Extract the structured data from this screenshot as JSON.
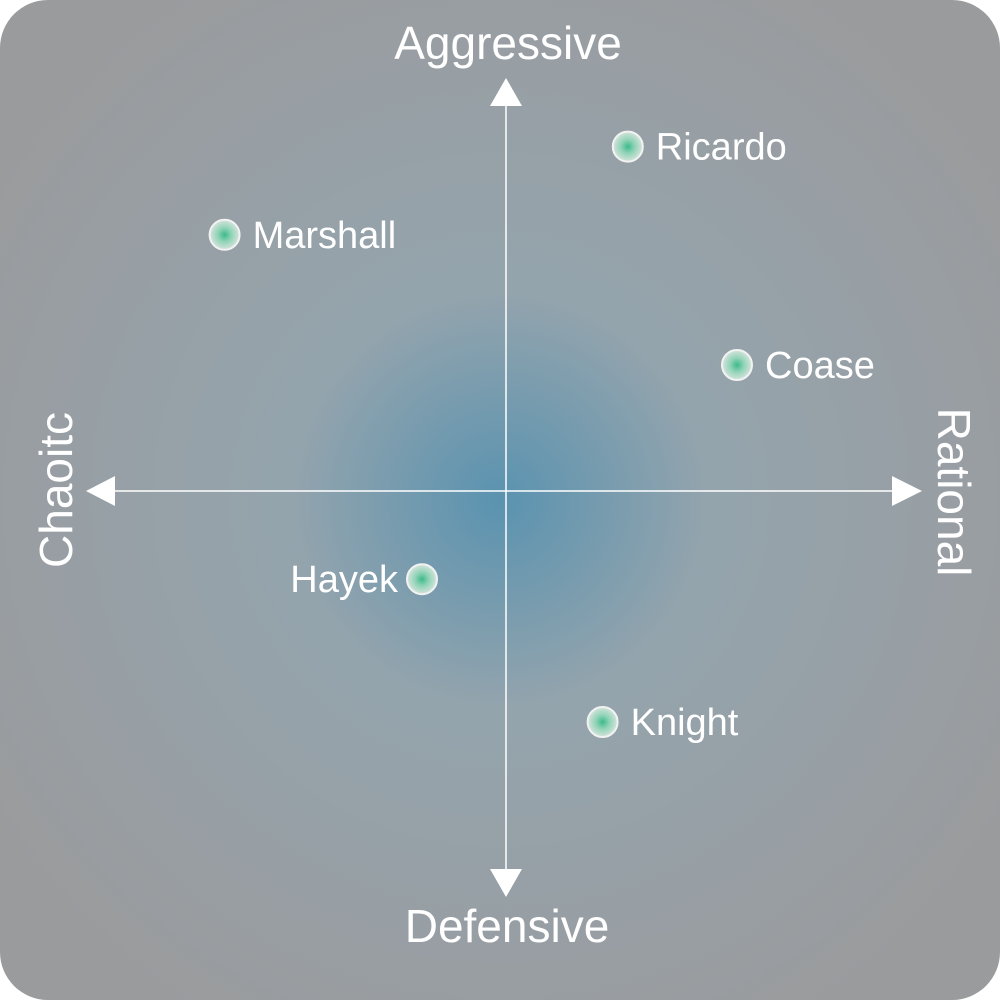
{
  "chart_data": {
    "type": "scatter",
    "title": "",
    "axes": {
      "top": "Aggressive",
      "bottom": "Defensive",
      "left": "Chaoitc",
      "right": "Rational"
    },
    "xlim": [
      -1,
      1
    ],
    "ylim": [
      -1,
      1
    ],
    "grid": false,
    "points": [
      {
        "label": "Ricardo",
        "x": 0.29,
        "y": 0.82,
        "label_side": "right"
      },
      {
        "label": "Marshall",
        "x": -0.67,
        "y": 0.61,
        "label_side": "right"
      },
      {
        "label": "Coase",
        "x": 0.55,
        "y": 0.3,
        "label_side": "right"
      },
      {
        "label": "Hayek",
        "x": -0.2,
        "y": -0.21,
        "label_side": "left"
      },
      {
        "label": "Knight",
        "x": 0.23,
        "y": -0.55,
        "label_side": "right"
      }
    ],
    "colors": {
      "point_fill": "#3dba8a",
      "point_ring": "#f2f2f2",
      "axis": "#ffffff",
      "center_glow": "#5a93b0",
      "background": "#9a9b9d"
    }
  }
}
